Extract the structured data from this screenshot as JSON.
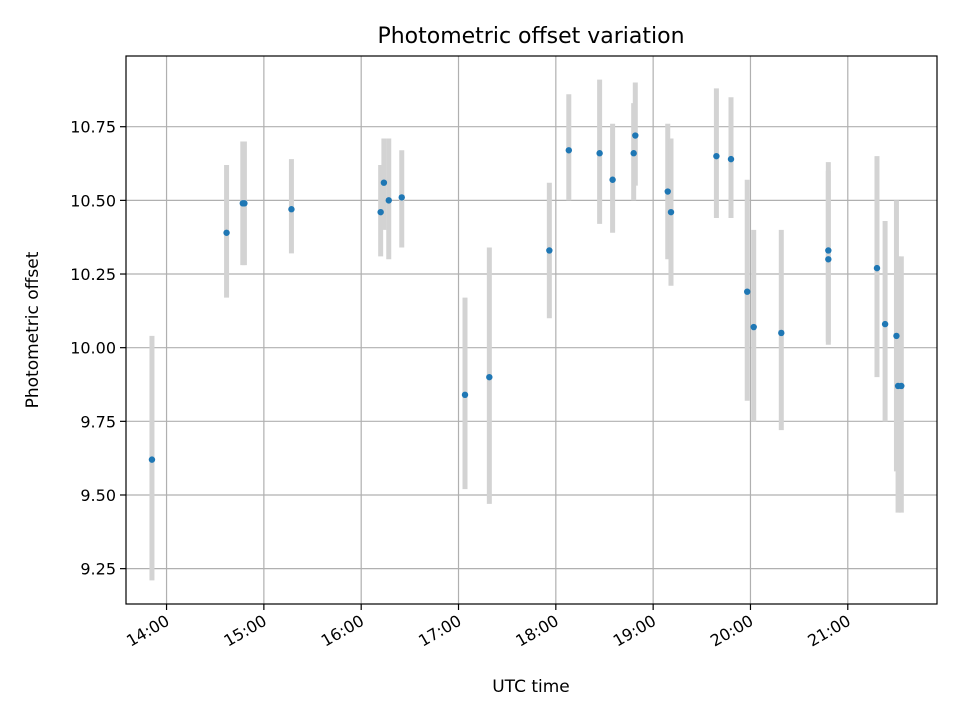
{
  "chart_data": {
    "type": "scatter",
    "title": "Photometric offset variation",
    "xlabel": "UTC time",
    "ylabel": "Photometric offset",
    "grid": true,
    "xlim": [
      "13:35",
      "21:55"
    ],
    "ylim": [
      9.13,
      10.99
    ],
    "xticks": [
      "14:00",
      "15:00",
      "16:00",
      "17:00",
      "18:00",
      "19:00",
      "20:00",
      "21:00"
    ],
    "yticks": [
      9.25,
      9.5,
      9.75,
      10.0,
      10.25,
      10.5,
      10.75
    ],
    "ytick_labels": [
      "9.25",
      "9.50",
      "9.75",
      "10.00",
      "10.25",
      "10.50",
      "10.75"
    ],
    "marker_color": "#1f77b4",
    "errorbar_color": "#d3d3d3",
    "points": [
      {
        "x": "13:51",
        "y": 9.62,
        "ylow": 9.21,
        "yhigh": 10.04
      },
      {
        "x": "14:37",
        "y": 10.39,
        "ylow": 10.17,
        "yhigh": 10.62
      },
      {
        "x": "14:47",
        "y": 10.49,
        "ylow": 10.28,
        "yhigh": 10.7
      },
      {
        "x": "14:48",
        "y": 10.49,
        "ylow": 10.28,
        "yhigh": 10.7
      },
      {
        "x": "15:17",
        "y": 10.47,
        "ylow": 10.32,
        "yhigh": 10.64
      },
      {
        "x": "16:12",
        "y": 10.46,
        "ylow": 10.31,
        "yhigh": 10.62
      },
      {
        "x": "16:14",
        "y": 10.56,
        "ylow": 10.4,
        "yhigh": 10.71
      },
      {
        "x": "16:17",
        "y": 10.5,
        "ylow": 10.3,
        "yhigh": 10.71
      },
      {
        "x": "16:25",
        "y": 10.51,
        "ylow": 10.34,
        "yhigh": 10.67
      },
      {
        "x": "17:04",
        "y": 9.84,
        "ylow": 9.52,
        "yhigh": 10.17
      },
      {
        "x": "17:19",
        "y": 9.9,
        "ylow": 9.47,
        "yhigh": 10.34
      },
      {
        "x": "17:56",
        "y": 10.33,
        "ylow": 10.1,
        "yhigh": 10.56
      },
      {
        "x": "18:08",
        "y": 10.67,
        "ylow": 10.5,
        "yhigh": 10.86
      },
      {
        "x": "18:27",
        "y": 10.66,
        "ylow": 10.42,
        "yhigh": 10.91
      },
      {
        "x": "18:35",
        "y": 10.57,
        "ylow": 10.39,
        "yhigh": 10.76
      },
      {
        "x": "18:48",
        "y": 10.66,
        "ylow": 10.5,
        "yhigh": 10.83
      },
      {
        "x": "18:49",
        "y": 10.72,
        "ylow": 10.55,
        "yhigh": 10.9
      },
      {
        "x": "19:09",
        "y": 10.53,
        "ylow": 10.3,
        "yhigh": 10.76
      },
      {
        "x": "19:11",
        "y": 10.46,
        "ylow": 10.21,
        "yhigh": 10.71
      },
      {
        "x": "19:39",
        "y": 10.65,
        "ylow": 10.44,
        "yhigh": 10.88
      },
      {
        "x": "19:48",
        "y": 10.64,
        "ylow": 10.44,
        "yhigh": 10.85
      },
      {
        "x": "19:58",
        "y": 10.19,
        "ylow": 9.82,
        "yhigh": 10.57
      },
      {
        "x": "20:02",
        "y": 10.07,
        "ylow": 9.75,
        "yhigh": 10.4
      },
      {
        "x": "20:19",
        "y": 10.05,
        "ylow": 9.72,
        "yhigh": 10.4
      },
      {
        "x": "20:48",
        "y": 10.33,
        "ylow": 10.02,
        "yhigh": 10.63
      },
      {
        "x": "20:48",
        "y": 10.3,
        "ylow": 10.01,
        "yhigh": 10.6
      },
      {
        "x": "21:18",
        "y": 10.27,
        "ylow": 9.9,
        "yhigh": 10.65
      },
      {
        "x": "21:23",
        "y": 10.08,
        "ylow": 9.75,
        "yhigh": 10.43
      },
      {
        "x": "21:30",
        "y": 10.04,
        "ylow": 9.58,
        "yhigh": 10.5
      },
      {
        "x": "21:31",
        "y": 9.87,
        "ylow": 9.44,
        "yhigh": 10.31
      },
      {
        "x": "21:33",
        "y": 9.87,
        "ylow": 9.44,
        "yhigh": 10.31
      }
    ]
  }
}
